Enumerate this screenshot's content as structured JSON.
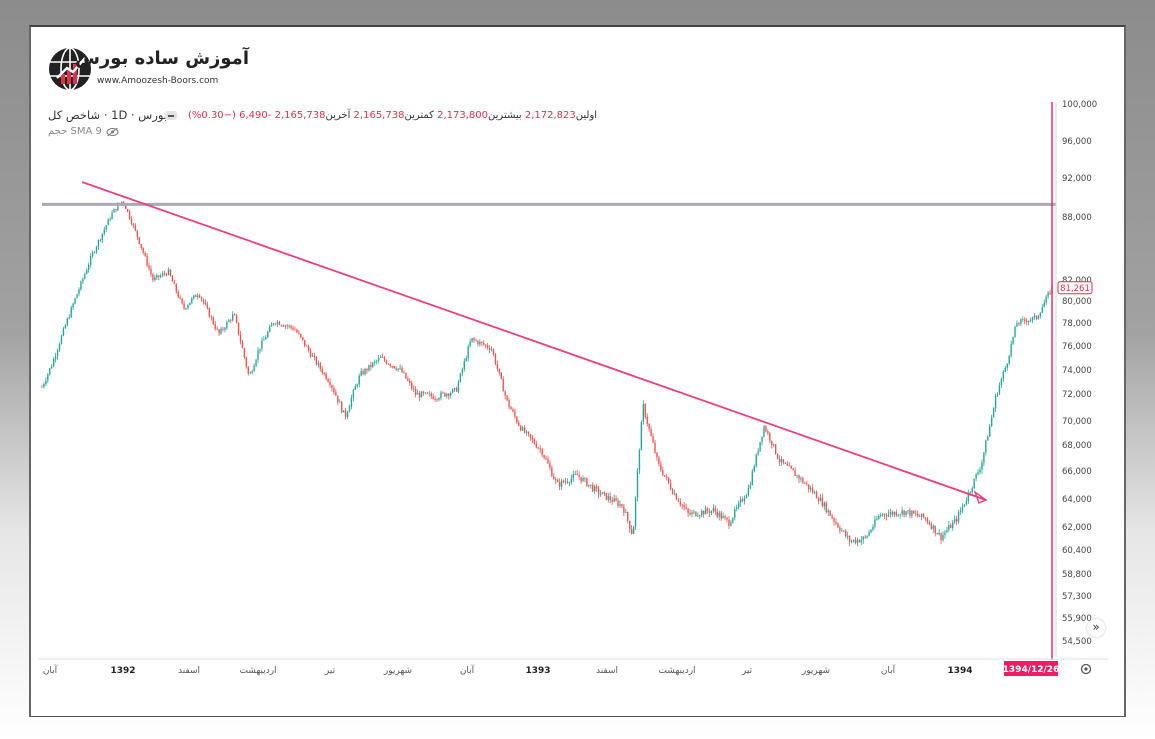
{
  "logo": {
    "title": "آموزش ساده بورس",
    "url": "www.Amoozesh-Boors.com"
  },
  "legend": {
    "symbol": "بورس · 1D · شاخص کل",
    "open_label": "اولین",
    "open_value": "2,172,823",
    "high_label": "بیشترین",
    "high_value": "2,173,800",
    "low_label": "کمترین",
    "low_value": "2,165,738",
    "close_label": "آخرین",
    "close_value": "2,165,738",
    "change": "-6,490 (−0.30%)",
    "indicator": "SMA 9 حجم"
  },
  "colors": {
    "up": "#26a69a",
    "down": "#ef5350",
    "trendline": "#e8407a",
    "resistance": "#a8a8b8",
    "crosshair": "#e91e63"
  },
  "chart_data": {
    "type": "candlestick",
    "y_ticks": [
      54500,
      55900,
      57300,
      58800,
      60400,
      62000,
      64000,
      66000,
      68000,
      70000,
      72000,
      74000,
      76000,
      78000,
      80000,
      82000,
      88000,
      92000,
      96000,
      100000
    ],
    "y_tick_labels": [
      "54,500",
      "55,900",
      "57,300",
      "58,800",
      "60,400",
      "62,000",
      "64,000",
      "66,000",
      "68,000",
      "70,000",
      "72,000",
      "74,000",
      "76,000",
      "78,000",
      "80,000",
      "82,000",
      "88,000",
      "92,000",
      "96,000",
      "100,000"
    ],
    "x_labels": [
      "آبان",
      "1392",
      "اسفند",
      "اردیبهشت",
      "تیر",
      "شهریور",
      "آبان",
      "1393",
      "اسفند",
      "اردیبهشت",
      "تیر",
      "شهریور",
      "آبان",
      "1394"
    ],
    "x_label_bold": [
      false,
      true,
      false,
      false,
      false,
      false,
      false,
      true,
      false,
      false,
      false,
      false,
      false,
      true
    ],
    "crosshair_date": "1394/12/26",
    "last_price": "81,261",
    "last_price_value": 81261,
    "resistance_level": 89300,
    "trendline": {
      "from_index": 0.14,
      "from_value": 91500,
      "to_index": 0.97,
      "to_value": 63800
    },
    "close_profile": [
      [
        0.0,
        72600
      ],
      [
        0.01,
        74500
      ],
      [
        0.03,
        79500
      ],
      [
        0.05,
        84500
      ],
      [
        0.07,
        88500
      ],
      [
        0.08,
        89700
      ],
      [
        0.095,
        86000
      ],
      [
        0.11,
        82000
      ],
      [
        0.125,
        82800
      ],
      [
        0.14,
        79300
      ],
      [
        0.155,
        80800
      ],
      [
        0.175,
        77000
      ],
      [
        0.19,
        78800
      ],
      [
        0.205,
        73400
      ],
      [
        0.215,
        75800
      ],
      [
        0.23,
        78200
      ],
      [
        0.25,
        77500
      ],
      [
        0.27,
        74800
      ],
      [
        0.285,
        73000
      ],
      [
        0.3,
        70300
      ],
      [
        0.315,
        73600
      ],
      [
        0.335,
        75000
      ],
      [
        0.355,
        74000
      ],
      [
        0.37,
        72000
      ],
      [
        0.39,
        71800
      ],
      [
        0.41,
        72300
      ],
      [
        0.425,
        76600
      ],
      [
        0.445,
        75800
      ],
      [
        0.46,
        71500
      ],
      [
        0.475,
        69300
      ],
      [
        0.495,
        67500
      ],
      [
        0.51,
        65000
      ],
      [
        0.53,
        65700
      ],
      [
        0.55,
        64500
      ],
      [
        0.575,
        63500
      ],
      [
        0.585,
        61400
      ],
      [
        0.595,
        71200
      ],
      [
        0.61,
        66500
      ],
      [
        0.625,
        64500
      ],
      [
        0.64,
        62900
      ],
      [
        0.665,
        63200
      ],
      [
        0.68,
        62300
      ],
      [
        0.7,
        64800
      ],
      [
        0.715,
        69600
      ],
      [
        0.73,
        66800
      ],
      [
        0.75,
        65500
      ],
      [
        0.77,
        64000
      ],
      [
        0.785,
        62400
      ],
      [
        0.8,
        61000
      ],
      [
        0.815,
        61200
      ],
      [
        0.83,
        62900
      ],
      [
        0.855,
        63100
      ],
      [
        0.875,
        62600
      ],
      [
        0.89,
        61300
      ],
      [
        0.905,
        62500
      ],
      [
        0.915,
        64000
      ],
      [
        0.93,
        66500
      ],
      [
        0.945,
        72000
      ],
      [
        0.955,
        74500
      ],
      [
        0.965,
        78000
      ],
      [
        0.985,
        78500
      ],
      [
        1.0,
        81261
      ]
    ]
  },
  "controls": {
    "scroll": "»"
  }
}
